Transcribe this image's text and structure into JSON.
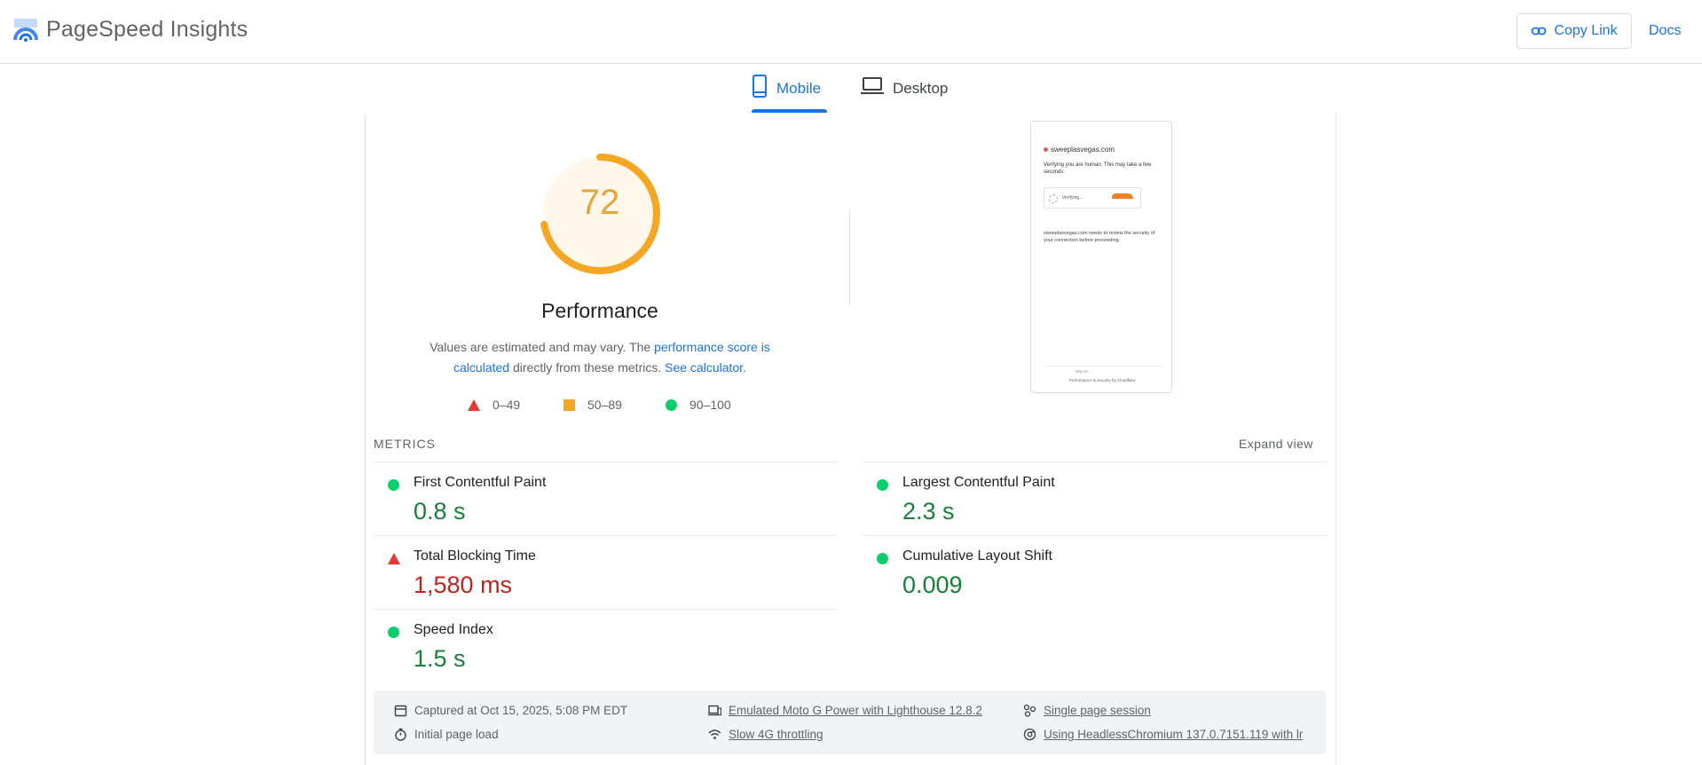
{
  "header": {
    "title": "PageSpeed Insights",
    "copy_link": "Copy Link",
    "docs": "Docs"
  },
  "tabs": [
    {
      "label": "Mobile",
      "active": true
    },
    {
      "label": "Desktop",
      "active": false
    }
  ],
  "score": {
    "value": "72",
    "fraction": 0.72,
    "title": "Performance",
    "desc_part1": "Values are estimated and may vary. The ",
    "desc_link1": "performance score is calculated",
    "desc_part2": " directly from these metrics. ",
    "desc_link2": "See calculator",
    "desc_part3": ".",
    "color": "#f5a623"
  },
  "legend": [
    {
      "range": "0–49",
      "shape": "triangle",
      "color": "#e53935"
    },
    {
      "range": "50–89",
      "shape": "square",
      "color": "#f5a623"
    },
    {
      "range": "90–100",
      "shape": "circle",
      "color": "#0cce6b"
    }
  ],
  "thumbnail": {
    "site": "sweeplasvegas.com",
    "verify": "Verifying you are human. This may take a few seconds.",
    "box_text": "Verifying...",
    "review": "sweeplasvegas.com needs to review the security of your connection before proceeding.",
    "ray": "Ray ID: ",
    "perf": "Performance & security by Cloudflare"
  },
  "metrics": {
    "label": "METRICS",
    "expand": "Expand view",
    "items": [
      {
        "name": "First Contentful Paint",
        "value": "0.8 s",
        "status": "good"
      },
      {
        "name": "Largest Contentful Paint",
        "value": "2.3 s",
        "status": "good"
      },
      {
        "name": "Total Blocking Time",
        "value": "1,580 ms",
        "status": "poor"
      },
      {
        "name": "Cumulative Layout Shift",
        "value": "0.009",
        "status": "good"
      },
      {
        "name": "Speed Index",
        "value": "1.5 s",
        "status": "good"
      }
    ]
  },
  "info": {
    "captured": "Captured at Oct 15, 2025, 5:08 PM EDT",
    "initial": "Initial page load",
    "emulated": "Emulated Moto G Power with Lighthouse 12.8.2",
    "throttling": "Slow 4G throttling",
    "session": "Single page session",
    "browser": "Using HeadlessChromium 137.0.7151.119 with lr"
  }
}
